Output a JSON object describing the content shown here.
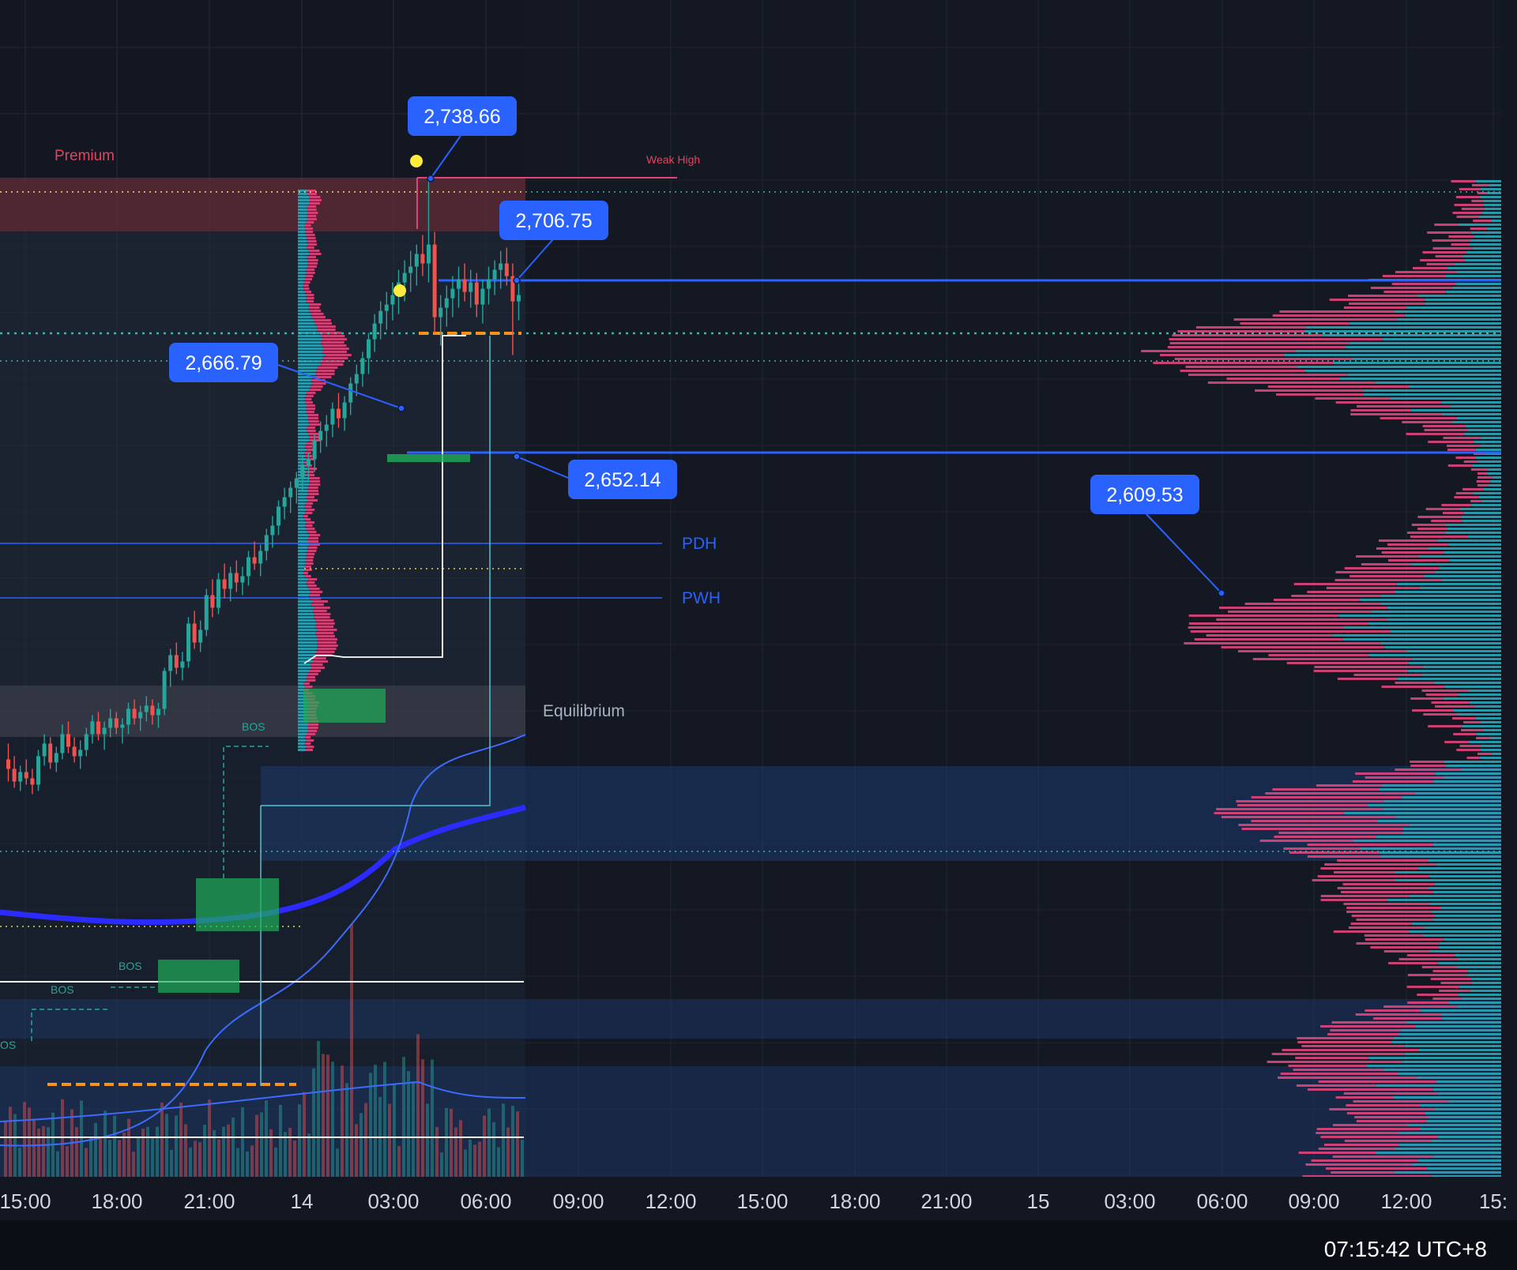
{
  "chart_data": {
    "type": "candlestick",
    "title": "",
    "colors": {
      "background": "#131722",
      "up": "#26a69a",
      "down": "#ef5350",
      "premium_zone": "#5a2a35",
      "equilibrium_zone": "#3a3f4b",
      "discount_zone": "#1e3a6e",
      "level_line": "#2962ff",
      "vwap_thick": "#2b2bff",
      "vwap_thin": "#3d6bff",
      "order_block": "#1fae5a",
      "callout": "#2962ff",
      "profile_sell": "#e0457b",
      "profile_buy": "#2aa6b8",
      "dotted_teal": "#3fb6a8",
      "dotted_yellow": "#e8d44d",
      "poc_orange": "#f7931a"
    },
    "x_axis": {
      "ticks": [
        "15:00",
        "18:00",
        "21:00",
        "14",
        "03:00",
        "06:00",
        "09:00",
        "12:00",
        "15:00",
        "18:00",
        "21:00",
        "15",
        "03:00",
        "06:00",
        "09:00",
        "12:00",
        "15:"
      ]
    },
    "y_range": [
      2540,
      2745
    ],
    "price_callouts": [
      {
        "label": "2,738.66",
        "value": 2738.66
      },
      {
        "label": "2,706.75",
        "value": 2706.75
      },
      {
        "label": "2,666.79",
        "value": 2666.79
      },
      {
        "label": "2,652.14",
        "value": 2652.14
      },
      {
        "label": "2,609.53",
        "value": 2609.53
      }
    ],
    "zones": [
      {
        "name": "Premium"
      },
      {
        "name": "Equilibrium"
      }
    ],
    "level_labels": [
      {
        "label": "Weak High",
        "value": 2738.66
      },
      {
        "label": "PDH",
        "value": 2620.6
      },
      {
        "label": "PWH",
        "value": 2605.8
      }
    ],
    "structure_labels": [
      "BOS",
      "BOS",
      "BOS",
      "OS"
    ],
    "candles": [
      [
        2555,
        2560,
        2548,
        2552
      ],
      [
        2552,
        2556,
        2546,
        2548
      ],
      [
        2548,
        2553,
        2545,
        2551
      ],
      [
        2551,
        2555,
        2547,
        2549
      ],
      [
        2549,
        2552,
        2544,
        2547
      ],
      [
        2547,
        2558,
        2545,
        2556
      ],
      [
        2556,
        2563,
        2553,
        2560
      ],
      [
        2560,
        2562,
        2552,
        2554
      ],
      [
        2554,
        2559,
        2551,
        2557
      ],
      [
        2557,
        2566,
        2555,
        2563
      ],
      [
        2563,
        2567,
        2557,
        2559
      ],
      [
        2559,
        2562,
        2554,
        2556
      ],
      [
        2556,
        2561,
        2552,
        2558
      ],
      [
        2558,
        2565,
        2556,
        2563
      ],
      [
        2563,
        2569,
        2560,
        2567
      ],
      [
        2567,
        2570,
        2561,
        2563
      ],
      [
        2563,
        2567,
        2558,
        2565
      ],
      [
        2565,
        2571,
        2562,
        2568
      ],
      [
        2568,
        2570,
        2563,
        2565
      ],
      [
        2565,
        2568,
        2560,
        2566
      ],
      [
        2566,
        2573,
        2563,
        2571
      ],
      [
        2571,
        2574,
        2566,
        2568
      ],
      [
        2568,
        2572,
        2564,
        2570
      ],
      [
        2570,
        2575,
        2567,
        2572
      ],
      [
        2572,
        2574,
        2566,
        2569
      ],
      [
        2569,
        2573,
        2565,
        2571
      ],
      [
        2571,
        2584,
        2569,
        2583
      ],
      [
        2583,
        2590,
        2578,
        2588
      ],
      [
        2588,
        2592,
        2582,
        2584
      ],
      [
        2584,
        2589,
        2580,
        2586
      ],
      [
        2586,
        2600,
        2584,
        2598
      ],
      [
        2598,
        2602,
        2590,
        2592
      ],
      [
        2592,
        2599,
        2589,
        2596
      ],
      [
        2596,
        2609,
        2594,
        2607
      ],
      [
        2607,
        2612,
        2600,
        2603
      ],
      [
        2603,
        2614,
        2601,
        2612
      ],
      [
        2612,
        2617,
        2606,
        2609
      ],
      [
        2609,
        2616,
        2605,
        2614
      ],
      [
        2614,
        2618,
        2608,
        2611
      ],
      [
        2611,
        2616,
        2607,
        2613
      ],
      [
        2613,
        2621,
        2610,
        2619
      ],
      [
        2619,
        2624,
        2615,
        2617
      ],
      [
        2617,
        2623,
        2613,
        2621
      ],
      [
        2621,
        2628,
        2618,
        2626
      ],
      [
        2626,
        2632,
        2622,
        2629
      ],
      [
        2629,
        2637,
        2626,
        2635
      ],
      [
        2635,
        2641,
        2631,
        2638
      ],
      [
        2638,
        2643,
        2633,
        2641
      ],
      [
        2641,
        2646,
        2636,
        2644
      ],
      [
        2644,
        2651,
        2640,
        2648
      ],
      [
        2648,
        2652,
        2643,
        2650
      ],
      [
        2650,
        2658,
        2646,
        2656
      ],
      [
        2656,
        2662,
        2652,
        2659
      ],
      [
        2659,
        2664,
        2654,
        2661
      ],
      [
        2661,
        2668,
        2657,
        2666
      ],
      [
        2666,
        2671,
        2660,
        2663
      ],
      [
        2663,
        2670,
        2659,
        2668
      ],
      [
        2668,
        2676,
        2664,
        2674
      ],
      [
        2674,
        2680,
        2670,
        2677
      ],
      [
        2677,
        2684,
        2673,
        2682
      ],
      [
        2682,
        2690,
        2677,
        2688
      ],
      [
        2688,
        2696,
        2684,
        2693
      ],
      [
        2693,
        2700,
        2688,
        2697
      ],
      [
        2697,
        2703,
        2691,
        2699
      ],
      [
        2699,
        2706,
        2694,
        2702
      ],
      [
        2702,
        2710,
        2696,
        2706
      ],
      [
        2706,
        2713,
        2700,
        2709
      ],
      [
        2709,
        2716,
        2703,
        2711
      ],
      [
        2711,
        2718,
        2705,
        2715
      ],
      [
        2715,
        2721,
        2708,
        2712
      ],
      [
        2712,
        2738.66,
        2706,
        2718
      ],
      [
        2718,
        2722,
        2690,
        2695
      ],
      [
        2695,
        2702,
        2686,
        2698
      ],
      [
        2698,
        2705,
        2692,
        2701
      ],
      [
        2701,
        2708,
        2695,
        2704
      ],
      [
        2704,
        2711,
        2698,
        2707
      ],
      [
        2707,
        2712,
        2700,
        2703
      ],
      [
        2703,
        2710,
        2698,
        2706
      ],
      [
        2706,
        2709,
        2695,
        2699
      ],
      [
        2699,
        2707,
        2693,
        2704
      ],
      [
        2704,
        2711,
        2699,
        2707
      ],
      [
        2707,
        2713,
        2702,
        2710
      ],
      [
        2710,
        2716,
        2704,
        2712
      ],
      [
        2712,
        2717,
        2705,
        2708
      ],
      [
        2708,
        2712,
        2683,
        2700
      ],
      [
        2700,
        2706,
        2694,
        2702
      ]
    ]
  }
}
